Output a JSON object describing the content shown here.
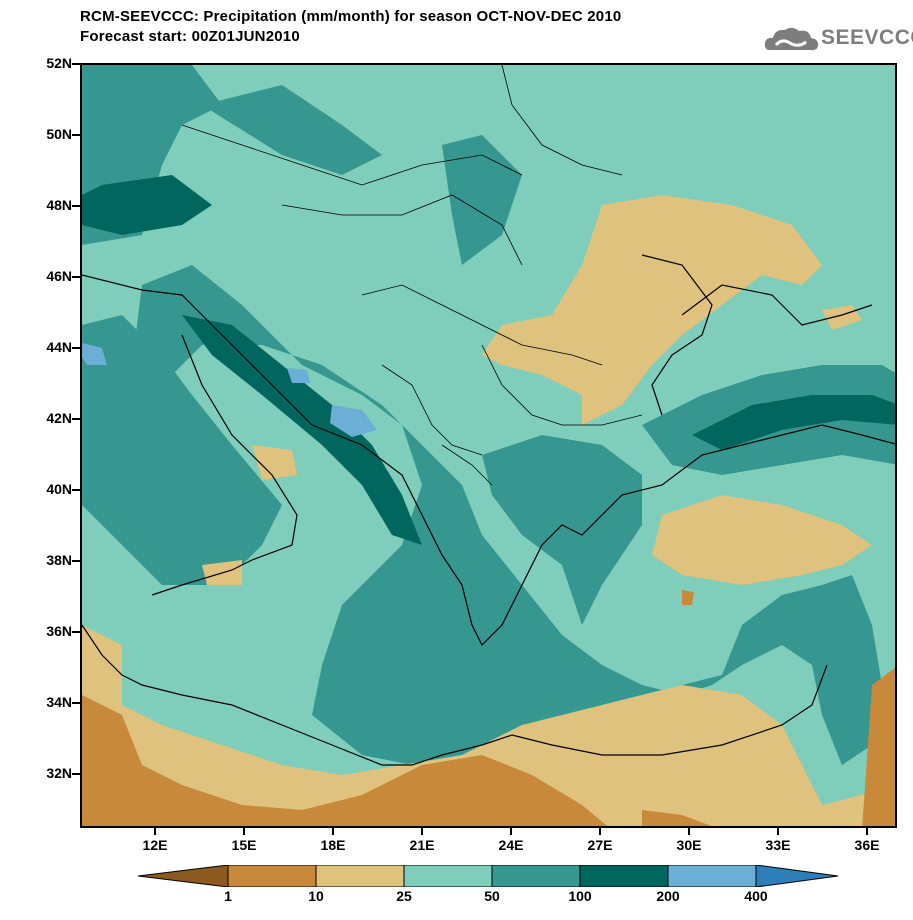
{
  "title_line1": "RCM-SEEVCCC: Precipitation (mm/month) for season OCT-NOV-DEC 2010",
  "title_line2": "Forecast start: 00Z01JUN2010",
  "logo": {
    "text": "SEEVCCC",
    "icon": "cloud-icon"
  },
  "map": {
    "lat_labels": [
      "52N",
      "50N",
      "48N",
      "46N",
      "44N",
      "42N",
      "40N",
      "38N",
      "36N",
      "34N",
      "32N"
    ],
    "lon_labels": [
      "12E",
      "15E",
      "18E",
      "21E",
      "24E",
      "27E",
      "30E",
      "33E",
      "36E"
    ],
    "colors": {
      "lt1": "#8c5a1e",
      "c1_10": "#c8893a",
      "c10_25": "#dfc27d",
      "c25_50": "#7fcdbb",
      "c50_100": "#35978f",
      "c100_200": "#01665e",
      "c200_400": "#6baed6",
      "gt400": "#2c7fb8"
    }
  },
  "colorbar": {
    "labels": [
      "1",
      "10",
      "25",
      "50",
      "100",
      "200",
      "400"
    ],
    "colors": [
      "#8c5a1e",
      "#c8893a",
      "#dfc27d",
      "#7fcdbb",
      "#35978f",
      "#01665e",
      "#6baed6",
      "#2c7fb8"
    ]
  }
}
